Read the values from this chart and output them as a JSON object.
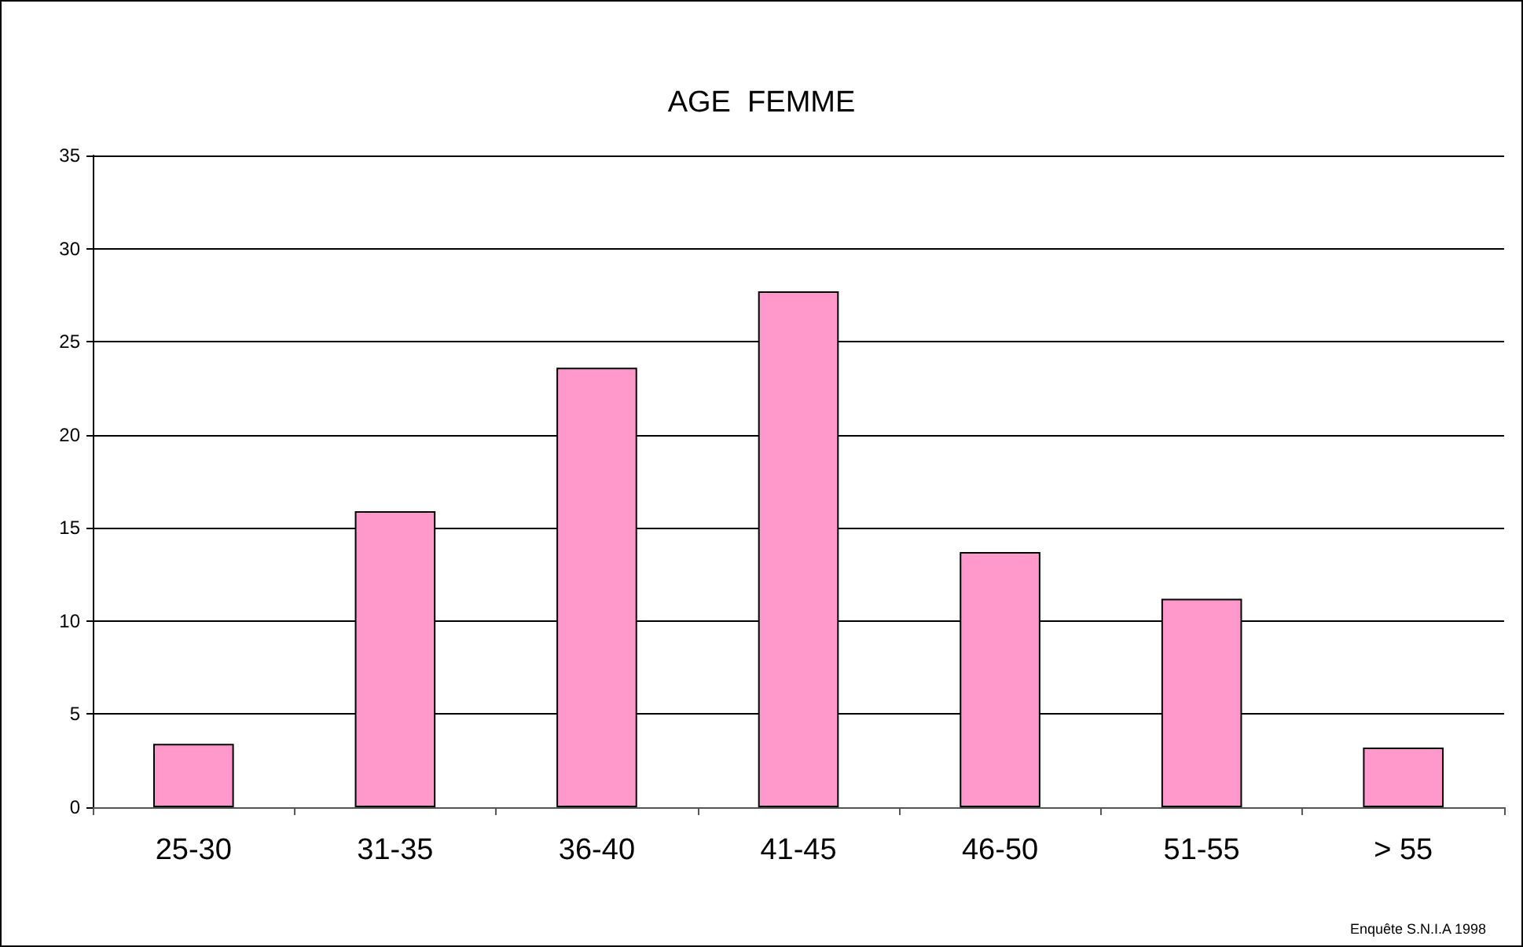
{
  "chart_data": {
    "type": "bar",
    "title": "AGE  FEMME",
    "categories": [
      "25-30",
      "31-35",
      "36-40",
      "41-45",
      "46-50",
      "51-55",
      "> 55"
    ],
    "values": [
      3.4,
      15.9,
      23.6,
      27.7,
      13.7,
      11.2,
      3.2
    ],
    "color": "#ff99cc",
    "ylim": [
      0,
      35
    ],
    "yticks": [
      0,
      5,
      10,
      15,
      20,
      25,
      30,
      35
    ],
    "grid": "y",
    "annotations": [
      "Enquête S.N.I.A 1998"
    ]
  }
}
